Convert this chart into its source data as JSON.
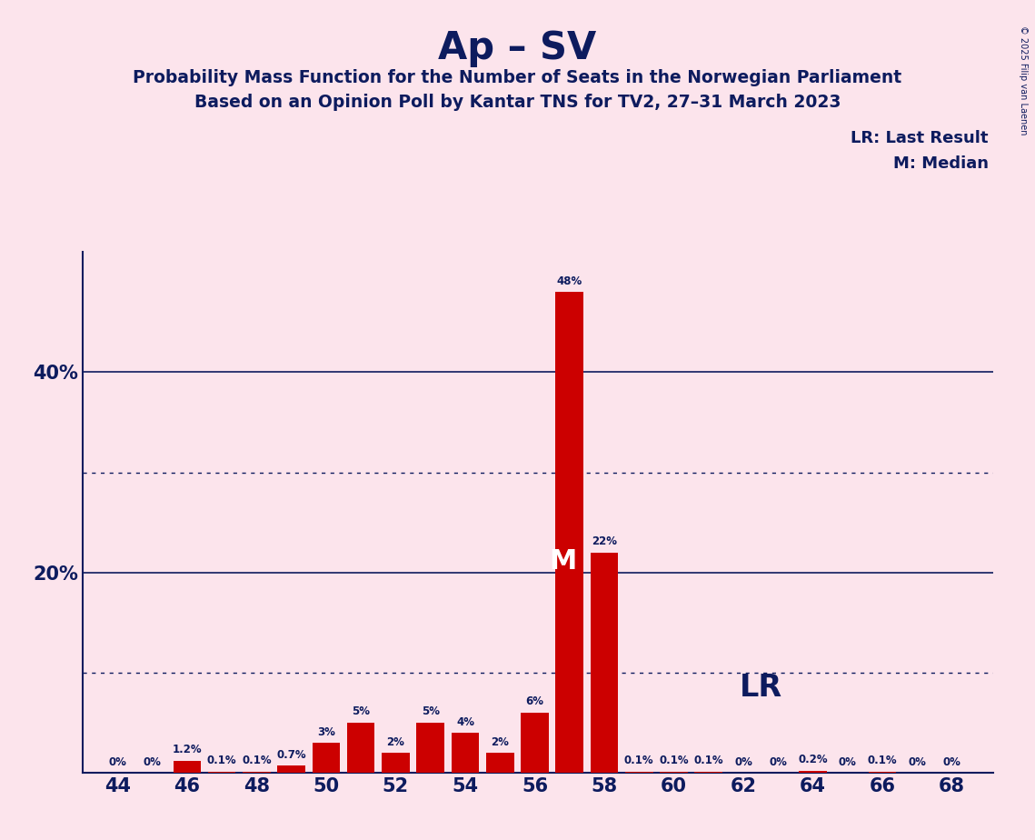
{
  "title": "Ap – SV",
  "subtitle1": "Probability Mass Function for the Number of Seats in the Norwegian Parliament",
  "subtitle2": "Based on an Opinion Poll by Kantar TNS for TV2, 27–31 March 2023",
  "copyright": "© 2025 Filip van Laenen",
  "seats": [
    44,
    45,
    46,
    47,
    48,
    49,
    50,
    51,
    52,
    53,
    54,
    55,
    56,
    57,
    58,
    59,
    60,
    61,
    62,
    63,
    64,
    65,
    66,
    67,
    68
  ],
  "values": [
    0.0,
    0.0,
    1.2,
    0.1,
    0.1,
    0.7,
    3.0,
    5.0,
    2.0,
    5.0,
    4.0,
    2.0,
    6.0,
    48.0,
    22.0,
    0.1,
    0.1,
    0.1,
    0.0,
    0.0,
    0.2,
    0.0,
    0.1,
    0.0,
    0.0
  ],
  "labels": [
    "0%",
    "0%",
    "1.2%",
    "0.1%",
    "0.1%",
    "0.7%",
    "3%",
    "5%",
    "2%",
    "5%",
    "4%",
    "2%",
    "6%",
    "48%",
    "22%",
    "0.1%",
    "0.1%",
    "0.1%",
    "0%",
    "0%",
    "0.2%",
    "0%",
    "0.1%",
    "0%",
    "0%"
  ],
  "bar_color": "#cc0000",
  "median_seat": 57,
  "lr_seat": 59,
  "background_color": "#fce4ec",
  "text_color": "#0d1b5e",
  "ylim_max": 52,
  "solid_yticks": [
    20,
    40
  ],
  "dotted_yticks": [
    10,
    30
  ],
  "lr_annotation": "LR",
  "median_annotation": "M",
  "lr_label": "LR: Last Result",
  "median_label": "M: Median"
}
